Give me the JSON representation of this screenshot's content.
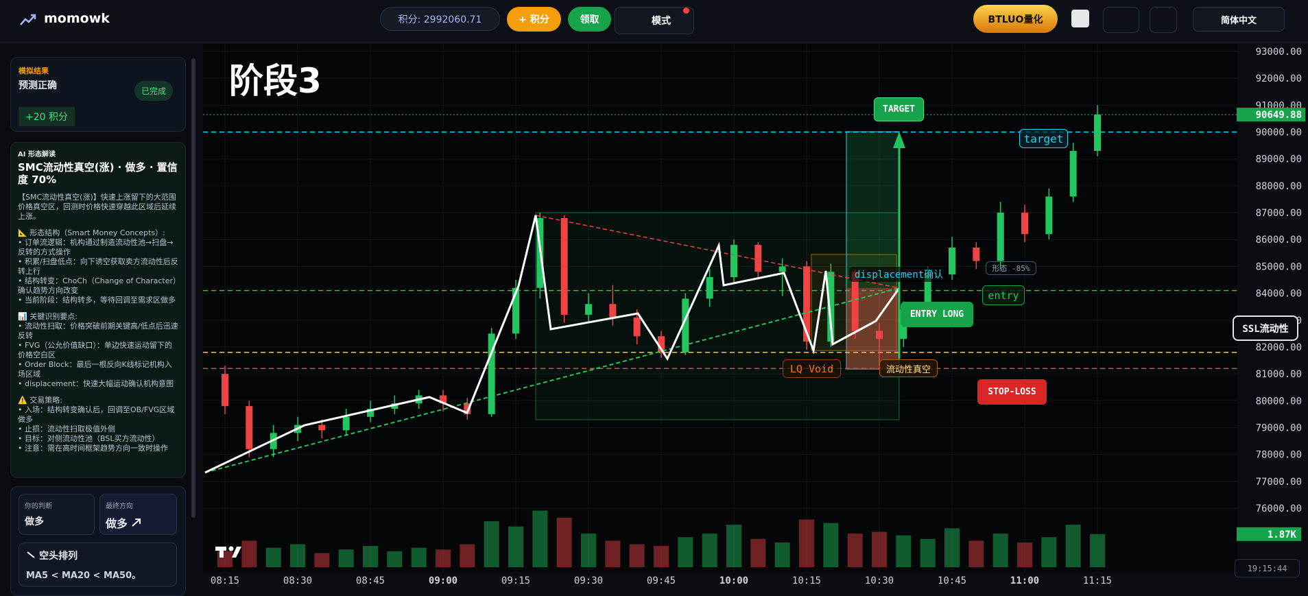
{
  "header": {
    "brand": "momowk",
    "points": "积分: 2992060.71",
    "add_points": "+ 积分",
    "claim": "领取",
    "mode": "模式",
    "quant": "BTLUO量化",
    "language": "简体中文"
  },
  "sidebar": {
    "result": {
      "label": "模拟结果",
      "title": "预测正确",
      "badge": "已完成",
      "reward": "+20 积分"
    },
    "analysis": {
      "label": "AI 形态解读",
      "title": "SMC流动性真空(涨) · 做多 · 置信度 70%",
      "paragraphs": [
        "【SMC流动性真空(涨)】快速上涨留下的大范围价格真空区，回测时价格快速穿越此区域后延续上涨。",
        "📐 形态结构（Smart Money Concepts）:\n• 订单流逻辑：机构通过制造流动性池→扫盘→反转的方式操作\n• 积累/扫盘低点：向下诱空获取卖方流动性后反转上行\n• 结构转变：ChoCh（Change of Character）确认趋势方向改变\n• 当前阶段：结构转多，等待回调至需求区做多",
        "📊 关键识别要点:\n• 流动性扫取：价格突破前期关键高/低点后迅速反转\n• FVG（公允价值缺口）：单边快速运动留下的价格空白区\n• Order Block：最后一根反向K线标记机构入场区域\n• displacement：快速大幅运动确认机构意图",
        "⚠️ 交易策略:\n• 入场：结构转变确认后，回调至OB/FVG区域做多\n• 止损：流动性扫取极值外侧\n• 目标：对侧流动性池（BSL买方流动性）\n• 注意：需在高时间框架趋势方向一致时操作"
      ]
    },
    "judgement": {
      "label": "你的判断",
      "value": "做多"
    },
    "final": {
      "label": "最终方向",
      "value": "做多"
    },
    "ma": {
      "title": "空头排列",
      "text": "MA5 < MA20 < MA50。"
    }
  },
  "chart_data": {
    "type": "candlestick",
    "title": "阶段3",
    "x": [
      "08:15",
      "08:20",
      "08:25",
      "08:30",
      "08:35",
      "08:40",
      "08:45",
      "08:50",
      "08:55",
      "09:00",
      "09:05",
      "09:10",
      "09:15",
      "09:20",
      "09:25",
      "09:30",
      "09:35",
      "09:40",
      "09:45",
      "09:50",
      "09:55",
      "10:00",
      "10:05",
      "10:10",
      "10:15",
      "10:20",
      "10:25",
      "10:30",
      "10:35",
      "10:40",
      "10:45",
      "10:50",
      "10:55",
      "11:00",
      "11:05",
      "11:10",
      "11:15"
    ],
    "open": [
      81000,
      79800,
      78200,
      78800,
      79100,
      78900,
      79400,
      79700,
      79900,
      80200,
      79900,
      79500,
      82500,
      84200,
      86800,
      83200,
      83600,
      83100,
      82400,
      81800,
      83800,
      84600,
      85800,
      84800,
      85000,
      82200,
      84800,
      82600,
      82300,
      83400,
      84700,
      85700,
      85200,
      87000,
      86200,
      87600,
      89300
    ],
    "high": [
      81300,
      80000,
      79100,
      79400,
      79300,
      79700,
      80000,
      80200,
      80400,
      80400,
      80100,
      82700,
      84500,
      87000,
      86900,
      84000,
      84300,
      83400,
      82600,
      84000,
      84900,
      86000,
      85900,
      85300,
      85200,
      85100,
      84900,
      82900,
      83700,
      85000,
      86100,
      85900,
      87400,
      87300,
      87900,
      89600,
      91000
    ],
    "low": [
      79500,
      77900,
      77900,
      78500,
      78600,
      78700,
      79200,
      79500,
      79700,
      79600,
      79300,
      79400,
      82300,
      83800,
      82900,
      82900,
      82800,
      82100,
      81600,
      81700,
      83500,
      84400,
      84500,
      83900,
      81900,
      82000,
      82300,
      81300,
      82000,
      83200,
      84500,
      84900,
      84900,
      85900,
      86000,
      87400,
      89100
    ],
    "close": [
      79800,
      78200,
      78800,
      79100,
      78900,
      79400,
      79700,
      79900,
      80200,
      79900,
      79500,
      82500,
      84200,
      86800,
      83200,
      83600,
      83100,
      82400,
      81800,
      83800,
      84600,
      85800,
      84800,
      85000,
      82200,
      84800,
      82600,
      82300,
      83400,
      84700,
      85700,
      85200,
      87000,
      86200,
      87600,
      89300,
      90649.88
    ],
    "volume": [
      900,
      1500,
      1100,
      1300,
      800,
      1000,
      1200,
      900,
      1100,
      1000,
      1300,
      2600,
      2300,
      3200,
      2800,
      1900,
      1500,
      1300,
      1200,
      1700,
      1900,
      2400,
      1600,
      1400,
      2700,
      2500,
      1900,
      2000,
      1800,
      1600,
      2200,
      1500,
      1900,
      1400,
      1700,
      2400,
      1870
    ],
    "up_color": "#22c55e",
    "down_color": "#ef4444",
    "ylim": [
      76000,
      93000
    ],
    "volume_lim": [
      0,
      4500
    ],
    "yticks": [
      {
        "value": 93000,
        "label": "93000.00"
      },
      {
        "value": 92000,
        "label": "92000.00"
      },
      {
        "value": 91000,
        "label": "91000.00"
      },
      {
        "value": 90000,
        "label": "90000.00"
      },
      {
        "value": 89000,
        "label": "89000.00"
      },
      {
        "value": 88000,
        "label": "88000.00"
      },
      {
        "value": 87000,
        "label": "87000.00"
      },
      {
        "value": 86000,
        "label": "86000.00"
      },
      {
        "value": 85000,
        "label": "85000.00"
      },
      {
        "value": 84000,
        "label": "84000.00"
      },
      {
        "value": 83000,
        "label": "83000.00"
      },
      {
        "value": 82000,
        "label": "82000.00"
      },
      {
        "value": 81000,
        "label": "81000.00"
      },
      {
        "value": 80000,
        "label": "80000.00"
      },
      {
        "value": 79000,
        "label": "79000.00"
      },
      {
        "value": 78000,
        "label": "78000.00"
      },
      {
        "value": 77000,
        "label": "77000.00"
      },
      {
        "value": 76000,
        "label": "76000.00"
      }
    ],
    "xticks": [
      "08:15",
      "08:30",
      "08:45",
      "09:00",
      "09:15",
      "09:30",
      "09:45",
      "10:00",
      "10:15",
      "10:30",
      "10:45",
      "11:00",
      "11:15"
    ],
    "grid": true,
    "last_price": {
      "value": 90649.88,
      "label": "90649.88"
    },
    "last_volume": {
      "value": 1870,
      "label": "1.87K"
    },
    "levels": [
      {
        "value": 90000,
        "color": "#22d3ee"
      },
      {
        "value": 84100,
        "color": "#22c55e"
      },
      {
        "value": 81800,
        "color": "#facc15"
      },
      {
        "value": 81200,
        "color": "#ef4444"
      }
    ],
    "annotations": {
      "target_box": "TARGET",
      "target": "target",
      "displacement": "displacement确认",
      "pattern": "形态 -85%",
      "entry": "entry",
      "entry_long": "ENTRY LONG",
      "ssl": "SSL流动性",
      "lq_void": "LQ Void",
      "vacuum": "流动性真空",
      "stop_loss": "STOP-LOSS"
    },
    "clock": "19:15:44"
  }
}
